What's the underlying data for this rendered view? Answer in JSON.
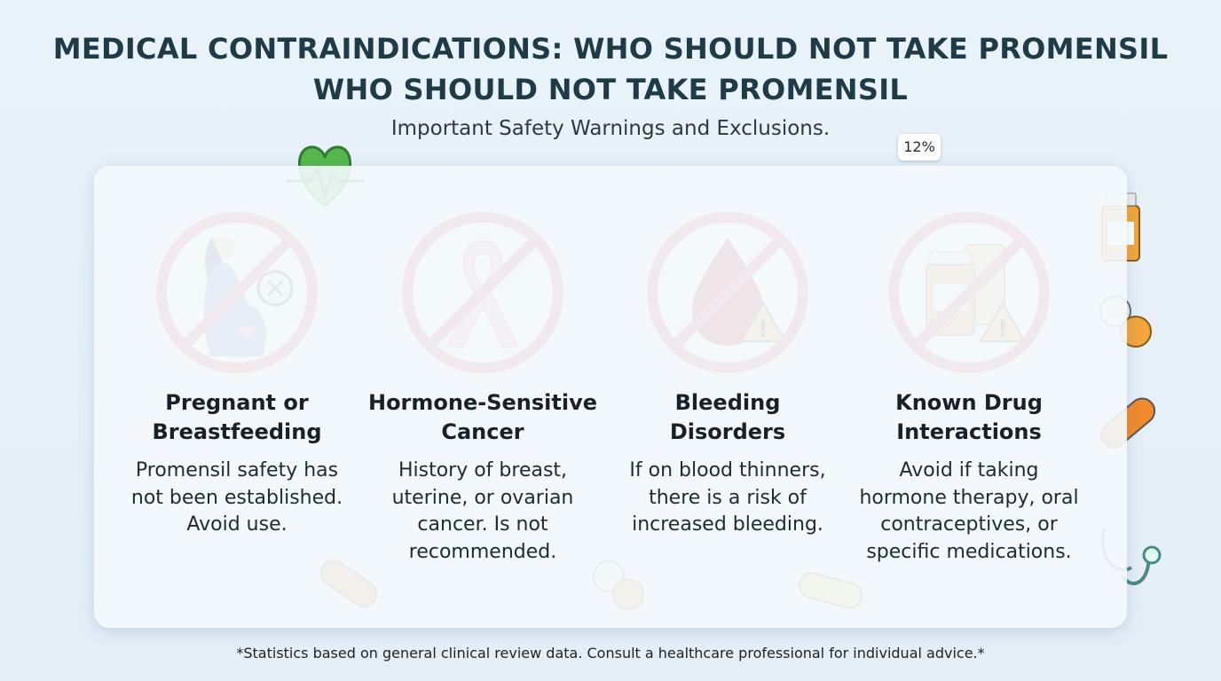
{
  "header": {
    "title_lines": [
      "MEDICAL CONTRAINDICATIONS: WHO SHOULD NOT TAKE PROMENSIL",
      "WHO SHOULD NOT TAKE PROMENSIL"
    ],
    "subtitle": "Important Safety Warnings and Exclusions.",
    "badge": "12%"
  },
  "cards": [
    {
      "title_lines": [
        "Pregnant or",
        "Breastfeeding"
      ],
      "body_lines": [
        "Promensil safety has",
        "not been established.",
        "Avoid use."
      ]
    },
    {
      "title_lines": [
        "Hormone-Sensitive",
        "Cancer"
      ],
      "body_lines": [
        "History of breast,",
        "uterine, or ovarian",
        "cancer. Is not",
        "recommended."
      ]
    },
    {
      "title_lines": [
        "Bleeding",
        "Disorders"
      ],
      "body_lines": [
        "If on blood thinners,",
        "there is a risk of",
        "increased bleeding."
      ]
    },
    {
      "title_lines": [
        "Known Drug",
        "Interactions"
      ],
      "body_lines": [
        "Avoid if taking",
        "hormone therapy, oral",
        "contraceptives, or",
        "specific medications."
      ]
    }
  ],
  "footnote": "*Statistics based on general clinical review data. Consult a healthcare professional for individual advice.*"
}
